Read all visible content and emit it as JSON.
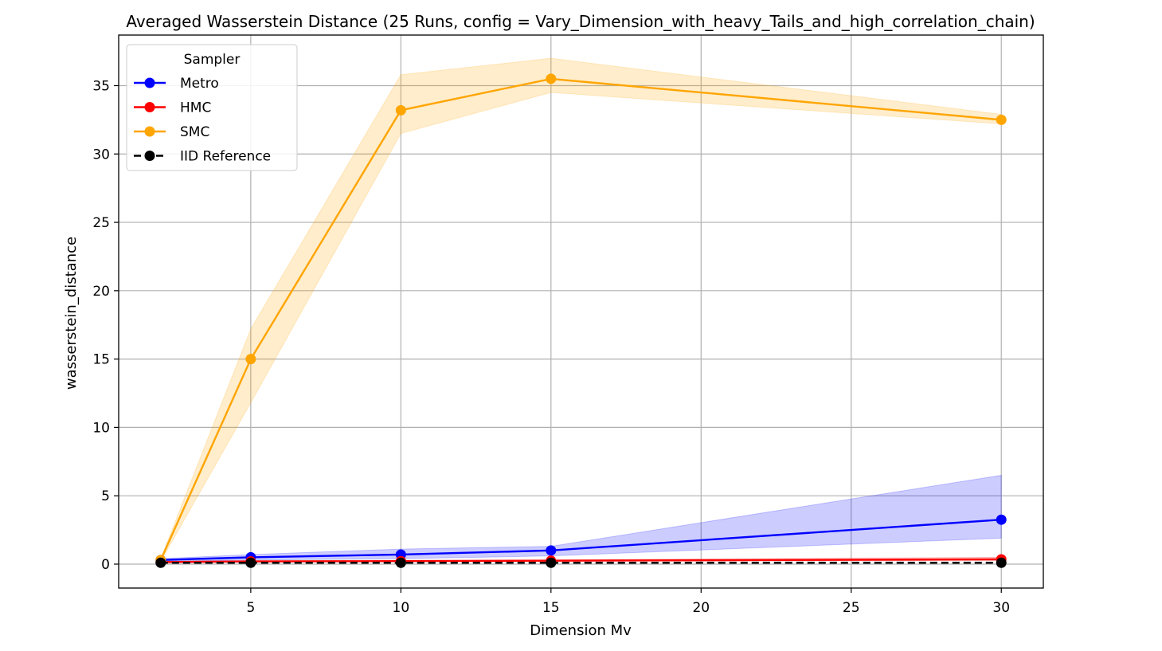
{
  "chart_data": {
    "type": "line",
    "title": "Averaged Wasserstein Distance (25 Runs, config = Vary_Dimension_with_heavy_Tails_and_high_correlation_chain)",
    "xlabel": "Dimension Mv",
    "ylabel": "wasserstein_distance",
    "xlim": [
      0.6,
      31.4
    ],
    "ylim": [
      -1.75,
      38.7
    ],
    "xticks": [
      5,
      10,
      15,
      20,
      25,
      30
    ],
    "yticks": [
      0,
      5,
      10,
      15,
      20,
      25,
      30,
      35
    ],
    "grid": true,
    "legend": {
      "title": "Sampler",
      "position": "top-left"
    },
    "x": [
      2,
      5,
      10,
      15,
      30
    ],
    "series": [
      {
        "name": "Metro",
        "color": "#0000ff",
        "dashed": false,
        "values": [
          0.3,
          0.5,
          0.7,
          1.0,
          3.25
        ],
        "band_lower": [
          0.2,
          0.3,
          0.4,
          0.6,
          1.9
        ],
        "band_upper": [
          0.4,
          0.7,
          1.1,
          1.3,
          6.5
        ],
        "band_color": "#0000ff"
      },
      {
        "name": "HMC",
        "color": "#ff0000",
        "dashed": false,
        "values": [
          0.15,
          0.2,
          0.22,
          0.25,
          0.35
        ],
        "band_lower": [
          0.1,
          0.15,
          0.17,
          0.2,
          0.25
        ],
        "band_upper": [
          0.2,
          0.25,
          0.28,
          0.32,
          0.5
        ],
        "band_color": "#ff0000"
      },
      {
        "name": "SMC",
        "color": "#ffa500",
        "dashed": false,
        "values": [
          0.3,
          15.0,
          33.2,
          35.5,
          32.5
        ],
        "band_lower": [
          0.2,
          11.8,
          31.5,
          34.5,
          32.2
        ],
        "band_upper": [
          0.4,
          17.2,
          35.8,
          37.0,
          32.9
        ],
        "band_color": "#ffa500"
      },
      {
        "name": "IID Reference",
        "color": "#000000",
        "dashed": true,
        "values": [
          0.1,
          0.1,
          0.1,
          0.1,
          0.1
        ]
      }
    ]
  }
}
